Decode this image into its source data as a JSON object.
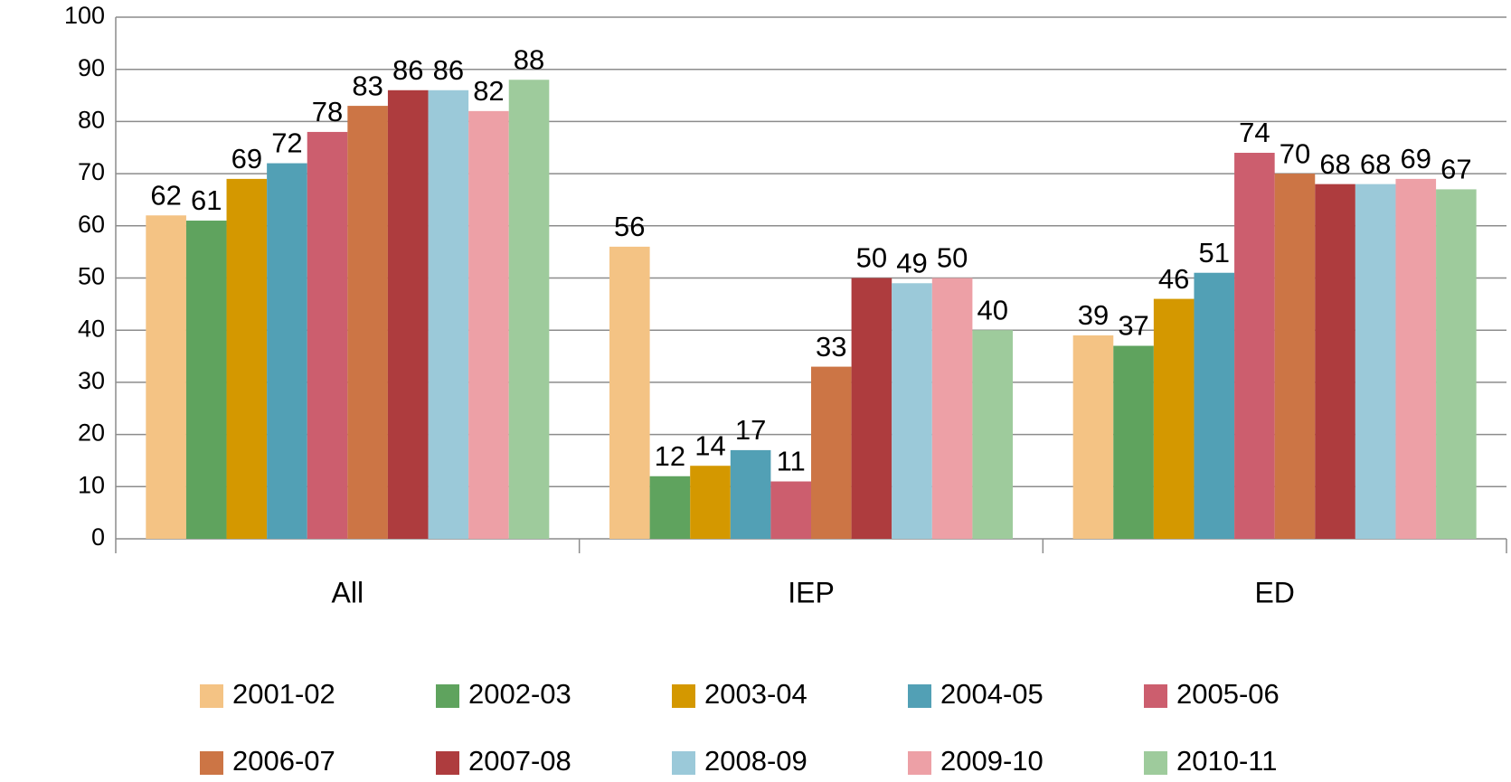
{
  "chart_data": {
    "type": "bar",
    "categories": [
      "All",
      "IEP",
      "ED"
    ],
    "series": [
      {
        "name": "2001-02",
        "color": "#f4c384",
        "values": [
          62,
          56,
          39
        ]
      },
      {
        "name": "2002-03",
        "color": "#5fa35e",
        "values": [
          61,
          12,
          37
        ]
      },
      {
        "name": "2003-04",
        "color": "#d49800",
        "values": [
          69,
          14,
          46
        ]
      },
      {
        "name": "2004-05",
        "color": "#52a0b5",
        "values": [
          72,
          17,
          51
        ]
      },
      {
        "name": "2005-06",
        "color": "#cc5e6e",
        "values": [
          78,
          11,
          74
        ]
      },
      {
        "name": "2006-07",
        "color": "#cc7545",
        "values": [
          83,
          33,
          70
        ]
      },
      {
        "name": "2007-08",
        "color": "#ae3c3e",
        "values": [
          86,
          50,
          68
        ]
      },
      {
        "name": "2008-09",
        "color": "#9bc9d9",
        "values": [
          86,
          49,
          68
        ]
      },
      {
        "name": "2009-10",
        "color": "#eda0a6",
        "values": [
          82,
          50,
          69
        ]
      },
      {
        "name": "2010-11",
        "color": "#9ecb9c",
        "values": [
          88,
          40,
          67
        ]
      }
    ],
    "ylim": [
      0,
      100
    ],
    "yticks": [
      0,
      10,
      20,
      30,
      40,
      50,
      60,
      70,
      80,
      90,
      100
    ],
    "grid": true,
    "legend": "bottom"
  }
}
